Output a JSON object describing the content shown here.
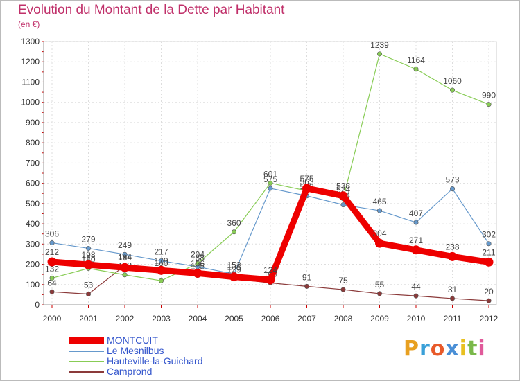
{
  "title": "Evolution du Montant de la Dette par Habitant",
  "subtitle": "(en €)",
  "logo": {
    "letters": [
      "P",
      "r",
      "o",
      "x",
      "i",
      "t",
      "i"
    ],
    "colors": [
      "#e8a020",
      "#3aa0d8",
      "#e85a2a",
      "#4a8fd6",
      "#e8c020",
      "#7ab84a",
      "#e05a9a"
    ]
  },
  "chart_data": {
    "type": "line",
    "x": [
      "2000",
      "2001",
      "2002",
      "2003",
      "2004",
      "2005",
      "2006",
      "2007",
      "2008",
      "2009",
      "2010",
      "2011",
      "2012"
    ],
    "ylim": [
      0,
      1300
    ],
    "yticks": [
      0,
      100,
      200,
      300,
      400,
      500,
      600,
      700,
      800,
      900,
      1000,
      1100,
      1200,
      1300
    ],
    "grid": true,
    "legend_position": "bottom-left",
    "series": [
      {
        "name": "MONTCUIT",
        "color": "#ee0000",
        "width": 9,
        "values": [
          212,
          198,
          184,
          170,
          156,
          138,
          124,
          575,
          538,
          304,
          271,
          238,
          211
        ]
      },
      {
        "name": "Le Mesnilbus",
        "color": "#6699cc",
        "width": 1.2,
        "values": [
          306,
          279,
          249,
          217,
          188,
          152,
          575,
          538,
          494,
          465,
          407,
          573,
          302
        ]
      },
      {
        "name": "Hauteville-la-Guichard",
        "color": "#88cc55",
        "width": 1.2,
        "values": [
          132,
          180,
          148,
          119,
          204,
          360,
          601,
          563,
          524,
          1239,
          1164,
          1060,
          990
        ]
      },
      {
        "name": "Camprond",
        "color": "#8b3a3a",
        "width": 1.2,
        "values": [
          64,
          53,
          194,
          160,
          145,
          129,
          108,
          91,
          75,
          55,
          44,
          31,
          20
        ]
      }
    ]
  }
}
